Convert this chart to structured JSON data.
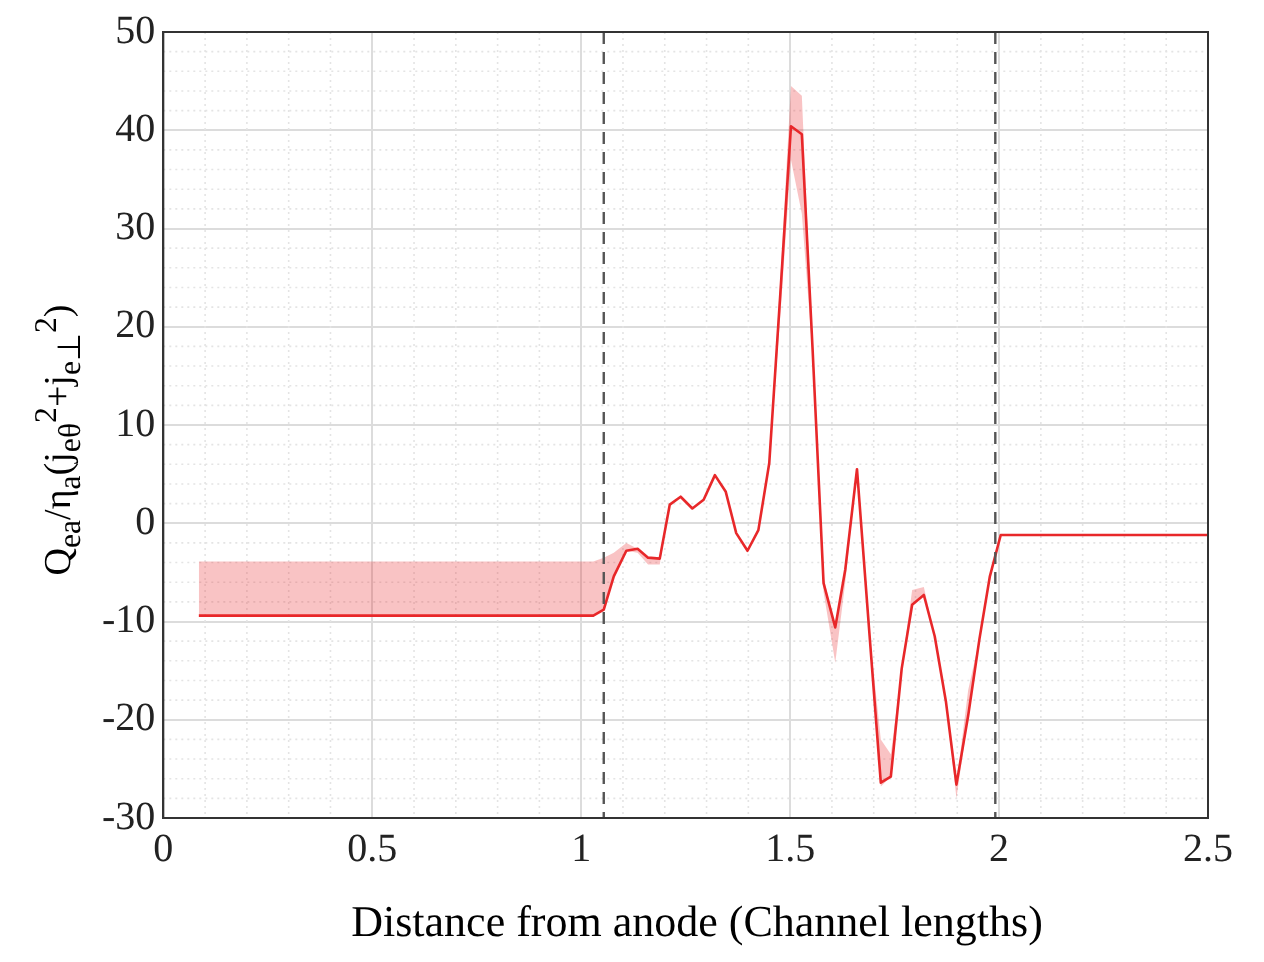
{
  "chart_data": {
    "type": "line",
    "xlabel": "Distance from anode (Channel lengths)",
    "ylabel": "Q$_{ea}$/η$_{a}$(j$_{eθ}$$^{2}$+j$_{e⊥}$$^{2}$)",
    "xlim": [
      0,
      2.5
    ],
    "ylim": [
      -30,
      50
    ],
    "xticks": [
      0,
      0.5,
      1,
      1.5,
      2,
      2.5
    ],
    "yticks": [
      -30,
      -20,
      -10,
      0,
      10,
      20,
      30,
      40,
      50
    ],
    "grid": true,
    "marker": "none",
    "line_style": "solid",
    "ref_lines": [
      {
        "axis": "x",
        "value": 1.054,
        "color": "#555555",
        "line_style": "dashed"
      },
      {
        "axis": "x",
        "value": 1.991,
        "color": "#555555",
        "line_style": "dashed"
      }
    ],
    "series": [
      {
        "color": "#e8282a",
        "x": [
          0.085,
          1.029,
          1.054,
          1.078,
          1.108,
          1.135,
          1.16,
          1.188,
          1.212,
          1.238,
          1.266,
          1.293,
          1.32,
          1.346,
          1.371,
          1.398,
          1.424,
          1.45,
          1.478,
          1.502,
          1.528,
          1.554,
          1.58,
          1.608,
          1.632,
          1.66,
          1.689,
          1.717,
          1.741,
          1.767,
          1.792,
          1.82,
          1.846,
          1.873,
          1.898,
          1.926,
          1.953,
          1.978,
          2.004,
          2.5
        ],
        "values": [
          -9.4,
          -9.4,
          -8.8,
          -5.4,
          -2.8,
          -2.6,
          -3.5,
          -3.6,
          1.9,
          2.7,
          1.5,
          2.4,
          4.9,
          3.2,
          -1.0,
          -2.8,
          -0.7,
          6.1,
          24.3,
          40.4,
          39.6,
          17.5,
          -6.1,
          -10.6,
          -4.7,
          5.5,
          -10.8,
          -26.4,
          -25.8,
          -14.8,
          -8.3,
          -7.3,
          -11.5,
          -18.2,
          -26.6,
          -19.6,
          -11.8,
          -5.4,
          -1.2,
          -1.2
        ],
        "lower": [
          -9.4,
          -9.4,
          -8.8,
          -5.4,
          -2.8,
          -3.0,
          -4.2,
          -4.2,
          1.9,
          2.7,
          1.5,
          2.4,
          4.9,
          3.2,
          -1.0,
          -2.8,
          -0.7,
          6.1,
          22,
          37,
          31.5,
          17,
          -7,
          -14.2,
          -6,
          5.5,
          -10.8,
          -26.8,
          -25.8,
          -14.8,
          -8.3,
          -7.3,
          -11.5,
          -18.2,
          -28,
          -19.6,
          -11.8,
          -5.4,
          -1.2,
          -1.2
        ],
        "upper": [
          -3.9,
          -3.9,
          -3.5,
          -3.0,
          -2.0,
          -2.6,
          -3.5,
          -3.6,
          1.9,
          2.7,
          1.5,
          2.4,
          4.9,
          3.2,
          -1.0,
          -2.8,
          -0.7,
          6.1,
          26,
          44.5,
          43.5,
          18,
          -5.5,
          -10.6,
          -4.7,
          5.5,
          -10.8,
          -22,
          -23.5,
          -14.8,
          -6.8,
          -6.5,
          -11.5,
          -18.2,
          -26.6,
          -17,
          -11.8,
          -5.4,
          -1.2,
          -1.2
        ]
      }
    ]
  }
}
